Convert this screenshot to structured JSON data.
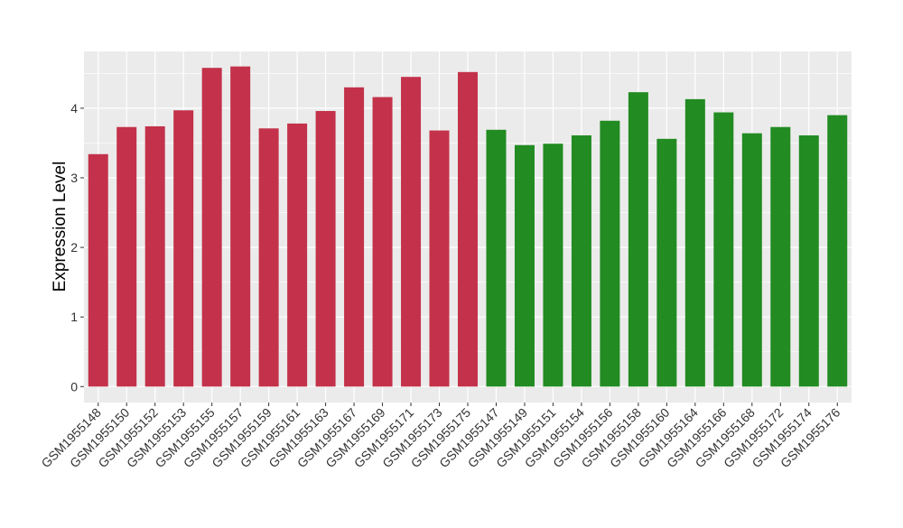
{
  "chart_data": {
    "type": "bar",
    "title": "",
    "xlabel": "",
    "ylabel": "Expression Level",
    "ylim": [
      -0.2,
      4.82
    ],
    "yticks": [
      0,
      1,
      2,
      3,
      4
    ],
    "grid": true,
    "legend": "none",
    "colors": {
      "group1": "#C3324A",
      "group2": "#228B22",
      "panel": "#EBEBEB",
      "grid": "#FFFFFF"
    },
    "categories": [
      "GSM1955148",
      "GSM1955150",
      "GSM1955152",
      "GSM1955153",
      "GSM1955155",
      "GSM1955157",
      "GSM1955159",
      "GSM1955161",
      "GSM1955163",
      "GSM1955167",
      "GSM1955169",
      "GSM1955171",
      "GSM1955173",
      "GSM1955175",
      "GSM1955147",
      "GSM1955149",
      "GSM1955151",
      "GSM1955154",
      "GSM1955156",
      "GSM1955158",
      "GSM1955160",
      "GSM1955164",
      "GSM1955166",
      "GSM1955168",
      "GSM1955172",
      "GSM1955174",
      "GSM1955176"
    ],
    "values": [
      3.34,
      3.73,
      3.74,
      3.97,
      4.58,
      4.6,
      3.71,
      3.78,
      3.96,
      4.3,
      4.16,
      4.45,
      3.68,
      4.52,
      3.69,
      3.47,
      3.49,
      3.61,
      3.82,
      4.23,
      3.56,
      4.13,
      3.94,
      3.64,
      3.73,
      3.61,
      3.9
    ],
    "groups": [
      1,
      1,
      1,
      1,
      1,
      1,
      1,
      1,
      1,
      1,
      1,
      1,
      1,
      1,
      2,
      2,
      2,
      2,
      2,
      2,
      2,
      2,
      2,
      2,
      2,
      2,
      2
    ]
  }
}
